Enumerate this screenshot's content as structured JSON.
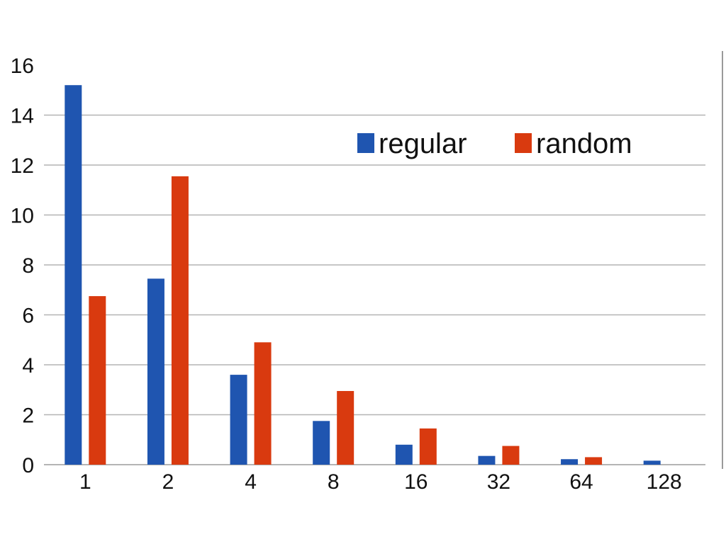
{
  "chart_data": {
    "type": "bar",
    "categories": [
      "1",
      "2",
      "4",
      "8",
      "16",
      "32",
      "64",
      "128"
    ],
    "series": [
      {
        "name": "regular",
        "color": "#1f55b0",
        "values": [
          15.2,
          7.45,
          3.6,
          1.75,
          0.8,
          0.35,
          0.22,
          0.16
        ]
      },
      {
        "name": "random",
        "color": "#d93a0f",
        "values": [
          6.75,
          11.55,
          4.9,
          2.95,
          1.45,
          0.75,
          0.3,
          null
        ]
      }
    ],
    "y_ticks": [
      "0",
      "2",
      "4",
      "6",
      "8",
      "10",
      "12",
      "14",
      "16"
    ],
    "ylim": [
      0,
      16
    ],
    "grid": true,
    "legend_position": "top-right",
    "gridline_color": "#b4b4b4"
  }
}
